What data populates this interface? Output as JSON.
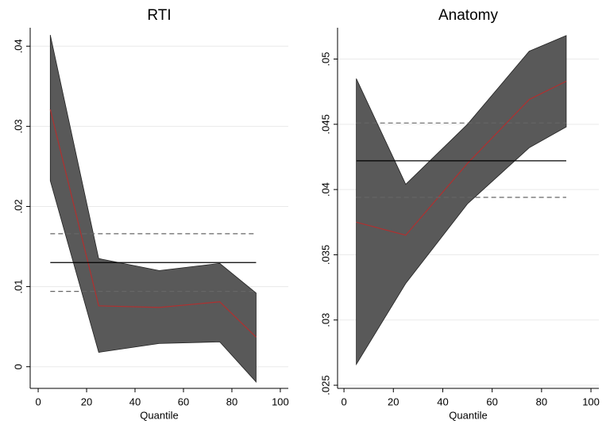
{
  "chart_data": [
    {
      "type": "quantile",
      "title": "RTI",
      "xlabel": "Quantile",
      "x": [
        5,
        25,
        50,
        75,
        90
      ],
      "estimate": [
        0.0321,
        0.0076,
        0.0074,
        0.0081,
        0.0037
      ],
      "upper": [
        0.0414,
        0.0135,
        0.012,
        0.0129,
        0.0092
      ],
      "lower": [
        0.0232,
        0.0018,
        0.0029,
        0.0031,
        -0.0019
      ],
      "ols": 0.013,
      "ols_upper": 0.0166,
      "ols_lower": 0.0094,
      "xlim": [
        -3.3,
        103.3
      ],
      "xticks": [
        0,
        20,
        40,
        60,
        80,
        100
      ],
      "ylim": [
        -0.0027,
        0.0423
      ],
      "yticks": [
        0,
        {
          "value": 0.01,
          "label": ".01"
        },
        {
          "value": 0.02,
          "label": ".02"
        },
        {
          "value": 0.03,
          "label": ".03"
        },
        {
          "value": 0.04,
          "label": ".04"
        }
      ],
      "grid": true,
      "band_color": "#595959",
      "line_color": "#b03030",
      "ols_color": "#000000",
      "ci_color": "#666666"
    },
    {
      "type": "quantile",
      "title": "Anatomy",
      "xlabel": "Quantile",
      "x": [
        5,
        25,
        50,
        75,
        90
      ],
      "estimate": [
        0.0375,
        0.0365,
        0.042,
        0.0469,
        0.0483
      ],
      "upper": [
        0.0485,
        0.0404,
        0.045,
        0.0506,
        0.0518
      ],
      "lower": [
        0.0266,
        0.0328,
        0.0389,
        0.0432,
        0.0448
      ],
      "ols": 0.0422,
      "ols_upper": 0.0451,
      "ols_lower": 0.0394,
      "xlim": [
        -2.6,
        103.2
      ],
      "xticks": [
        0,
        20,
        40,
        60,
        80,
        100
      ],
      "ylim": [
        0.02476,
        0.0524
      ],
      "yticks": [
        {
          "value": 0.025,
          "label": ".025"
        },
        {
          "value": 0.03,
          "label": ".03"
        },
        {
          "value": 0.035,
          "label": ".035"
        },
        {
          "value": 0.04,
          "label": ".04"
        },
        {
          "value": 0.045,
          "label": ".045"
        },
        {
          "value": 0.05,
          "label": ".05"
        }
      ],
      "grid": true,
      "band_color": "#595959",
      "line_color": "#b03030",
      "ols_color": "#000000",
      "ci_color": "#666666"
    }
  ]
}
